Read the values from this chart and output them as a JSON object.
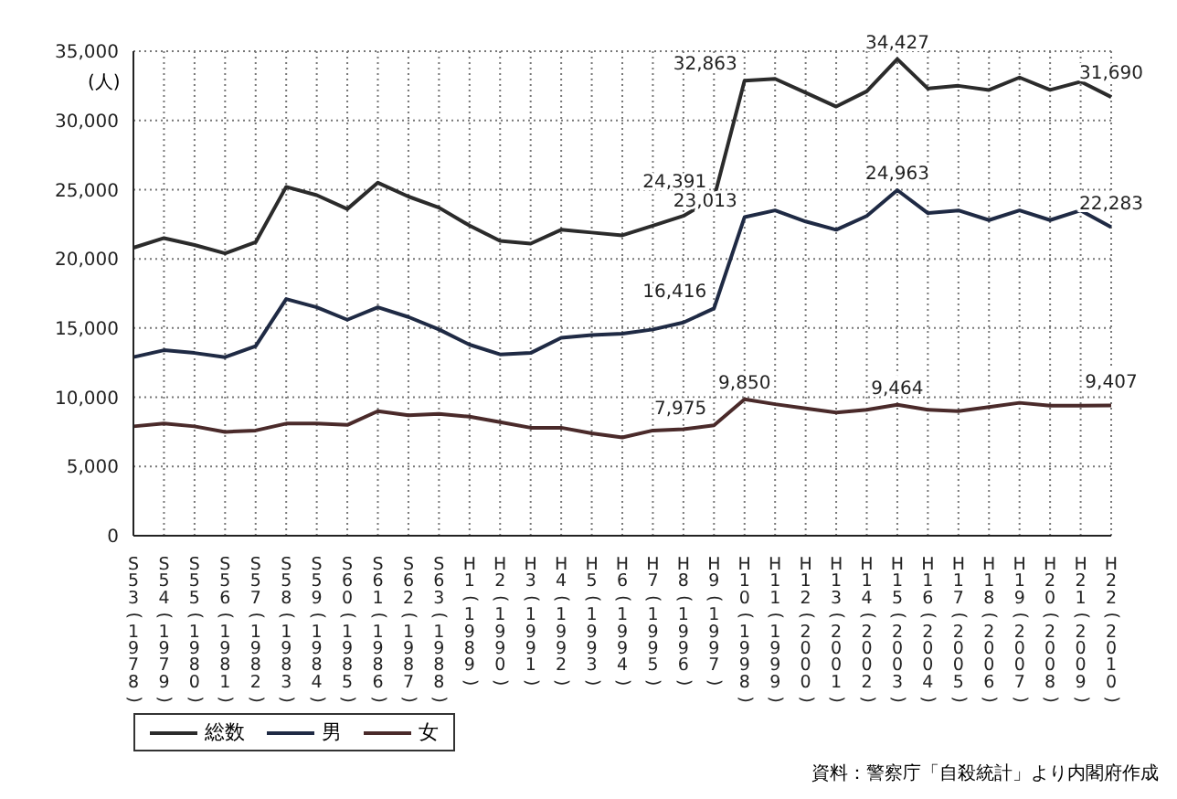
{
  "chart_data": {
    "type": "line",
    "ylabel": "(人)",
    "categories": [
      "S53(1978)",
      "S54(1979)",
      "S55(1980)",
      "S56(1981)",
      "S57(1982)",
      "S58(1983)",
      "S59(1984)",
      "S60(1985)",
      "S61(1986)",
      "S62(1987)",
      "S63(1988)",
      "H1(1989)",
      "H2(1990)",
      "H3(1991)",
      "H4(1992)",
      "H5(1993)",
      "H6(1994)",
      "H7(1995)",
      "H8(1996)",
      "H9(1997)",
      "H10(1998)",
      "H11(1999)",
      "H12(2000)",
      "H13(2001)",
      "H14(2002)",
      "H15(2003)",
      "H16(2004)",
      "H17(2005)",
      "H18(2006)",
      "H19(2007)",
      "H20(2008)",
      "H21(2009)",
      "H22(2010)"
    ],
    "series": [
      {
        "name": "総数",
        "color": "#2b2b2b",
        "values": [
          20800,
          21500,
          21000,
          20400,
          21200,
          25200,
          24600,
          23600,
          25500,
          24500,
          23700,
          22400,
          21300,
          21100,
          22100,
          21900,
          21700,
          22400,
          23100,
          24391,
          32863,
          33000,
          32000,
          31000,
          32100,
          34427,
          32300,
          32500,
          32200,
          33100,
          32200,
          32800,
          31690
        ],
        "value_labels": [
          null,
          null,
          null,
          null,
          null,
          null,
          null,
          null,
          null,
          null,
          null,
          null,
          null,
          null,
          null,
          null,
          null,
          null,
          null,
          "24,391",
          "32,863",
          null,
          null,
          null,
          null,
          "34,427",
          null,
          null,
          null,
          null,
          null,
          null,
          "31,690"
        ]
      },
      {
        "name": "男",
        "color": "#1f2a44",
        "values": [
          12900,
          13400,
          13200,
          12900,
          13700,
          17100,
          16500,
          15600,
          16500,
          15800,
          14900,
          13800,
          13100,
          13200,
          14300,
          14500,
          14600,
          14900,
          15400,
          16416,
          23013,
          23500,
          22700,
          22100,
          23100,
          24963,
          23300,
          23500,
          22800,
          23500,
          22800,
          23500,
          22283
        ],
        "value_labels": [
          null,
          null,
          null,
          null,
          null,
          null,
          null,
          null,
          null,
          null,
          null,
          null,
          null,
          null,
          null,
          null,
          null,
          null,
          null,
          "16,416",
          "23,013",
          null,
          null,
          null,
          null,
          "24,963",
          null,
          null,
          null,
          null,
          null,
          null,
          "22,283"
        ]
      },
      {
        "name": "女",
        "color": "#4a2a2a",
        "values": [
          7900,
          8100,
          7900,
          7500,
          7600,
          8100,
          8100,
          8000,
          9000,
          8700,
          8800,
          8600,
          8200,
          7800,
          7800,
          7400,
          7100,
          7600,
          7700,
          7975,
          9850,
          9500,
          9200,
          8900,
          9100,
          9464,
          9100,
          9000,
          9300,
          9600,
          9400,
          9400,
          9407
        ],
        "value_labels": [
          null,
          null,
          null,
          null,
          null,
          null,
          null,
          null,
          null,
          null,
          null,
          null,
          null,
          null,
          null,
          null,
          null,
          null,
          null,
          "7,975",
          "9,850",
          null,
          null,
          null,
          null,
          "9,464",
          null,
          null,
          null,
          null,
          null,
          null,
          "9,407"
        ]
      }
    ],
    "ylim": [
      0,
      35000
    ],
    "yticks": [
      0,
      {
        "value": 5000,
        "label": "5,000"
      },
      {
        "value": 10000,
        "label": "10,000"
      },
      {
        "value": 15000,
        "label": "15,000"
      },
      {
        "value": 20000,
        "label": "20,000"
      },
      {
        "value": 25000,
        "label": "25,000"
      },
      {
        "value": 30000,
        "label": "30,000"
      },
      {
        "value": 35000,
        "label": "35,000"
      }
    ],
    "grid": true,
    "legend": "bottom left",
    "marker": "none",
    "line_style": "solid",
    "annotations": [
      "資料：警察庁「自殺統計」より内閣府作成"
    ]
  }
}
